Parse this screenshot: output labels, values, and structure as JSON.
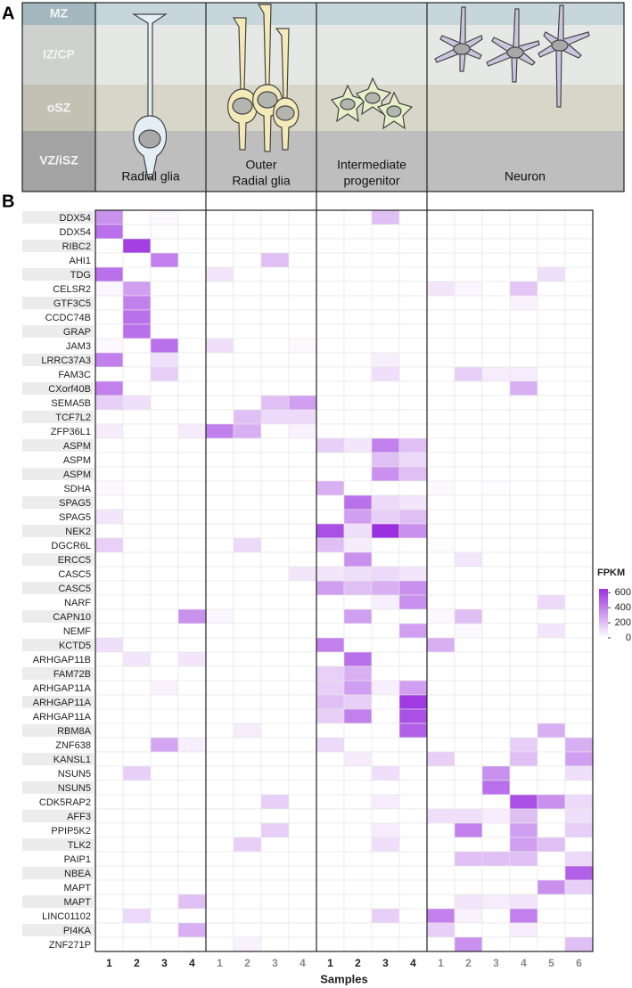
{
  "panel_a": {
    "label": "A",
    "zones": [
      "MZ",
      "IZ/CP",
      "oSZ",
      "VZ/iSZ"
    ],
    "cell_types": [
      [
        "Radial glia"
      ],
      [
        "Outer",
        "Radial glia"
      ],
      [
        "Intermediate",
        "progenitor"
      ],
      [
        "Neuron"
      ]
    ]
  },
  "chart_data": {
    "type": "heatmap",
    "label": "B",
    "x_label": "Samples",
    "colorbar_title": "FPKM",
    "zlim": [
      0,
      650
    ],
    "zticks": [
      0,
      200,
      400,
      600
    ],
    "low_color": "#ffffff",
    "high_color": "#9b30e0",
    "columns": [
      "1",
      "2",
      "3",
      "4",
      "1",
      "2",
      "3",
      "4",
      "1",
      "2",
      "3",
      "4",
      "1",
      "2",
      "3",
      "4",
      "5",
      "6"
    ],
    "rows": [
      "DDX54",
      "DDX54",
      "RIBC2",
      "AHI1",
      "TDG",
      "CELSR2",
      "GTF3C5",
      "CCDC74B",
      "GRAP",
      "JAM3",
      "LRRC37A3",
      "FAM3C",
      "CXorf40B",
      "SEMA5B",
      "TCF7L2",
      "ZFP36L1",
      "ASPM",
      "ASPM",
      "ASPM",
      "SDHA",
      "SPAG5",
      "SPAG5",
      "NEK2",
      "DGCR6L",
      "ERCC5",
      "CASC5",
      "CASC5",
      "NARF",
      "CAPN10",
      "NEMF",
      "KCTD5",
      "ARHGAP11B",
      "FAM72B",
      "ARHGAP11A",
      "ARHGAP11A",
      "ARHGAP11A",
      "RBM8A",
      "ZNF638",
      "KANSL1",
      "NSUN5",
      "NSUN5",
      "CDK5RAP2",
      "AFF3",
      "PPIP5K2",
      "TLK2",
      "PAIP1",
      "NBEA",
      "MAPT",
      "MAPT",
      "LINC01102",
      "PI4KA",
      "ZNF271P"
    ],
    "values": [
      [
        350,
        0,
        20,
        0,
        0,
        0,
        0,
        0,
        0,
        0,
        200,
        0,
        0,
        0,
        0,
        0,
        0,
        0
      ],
      [
        450,
        0,
        10,
        0,
        0,
        0,
        0,
        0,
        0,
        0,
        0,
        0,
        0,
        0,
        0,
        0,
        0,
        0
      ],
      [
        0,
        600,
        0,
        0,
        0,
        0,
        0,
        0,
        0,
        0,
        0,
        0,
        0,
        0,
        0,
        0,
        0,
        0
      ],
      [
        0,
        0,
        400,
        0,
        0,
        0,
        200,
        0,
        0,
        0,
        0,
        0,
        0,
        0,
        0,
        0,
        0,
        0
      ],
      [
        450,
        0,
        0,
        0,
        80,
        0,
        0,
        0,
        0,
        0,
        0,
        0,
        0,
        0,
        0,
        0,
        100,
        0
      ],
      [
        30,
        300,
        0,
        0,
        0,
        0,
        0,
        0,
        0,
        0,
        0,
        0,
        80,
        30,
        0,
        180,
        0,
        0
      ],
      [
        0,
        400,
        0,
        0,
        0,
        0,
        0,
        0,
        0,
        0,
        0,
        0,
        0,
        0,
        0,
        40,
        0,
        0
      ],
      [
        0,
        450,
        0,
        0,
        0,
        0,
        0,
        0,
        0,
        0,
        0,
        0,
        0,
        0,
        0,
        0,
        0,
        0
      ],
      [
        0,
        450,
        0,
        0,
        0,
        0,
        0,
        0,
        0,
        0,
        0,
        0,
        0,
        0,
        0,
        0,
        0,
        0
      ],
      [
        20,
        0,
        450,
        0,
        100,
        0,
        0,
        20,
        0,
        0,
        0,
        0,
        0,
        0,
        0,
        0,
        0,
        0
      ],
      [
        400,
        0,
        100,
        0,
        0,
        0,
        0,
        0,
        0,
        0,
        50,
        0,
        0,
        0,
        0,
        0,
        0,
        0
      ],
      [
        0,
        0,
        150,
        0,
        0,
        0,
        0,
        0,
        0,
        0,
        100,
        0,
        0,
        150,
        60,
        60,
        0,
        0
      ],
      [
        400,
        0,
        0,
        0,
        0,
        0,
        0,
        0,
        0,
        0,
        0,
        0,
        0,
        0,
        0,
        250,
        0,
        0
      ],
      [
        150,
        100,
        0,
        0,
        0,
        0,
        200,
        300,
        0,
        0,
        0,
        0,
        0,
        0,
        0,
        0,
        0,
        0
      ],
      [
        0,
        0,
        0,
        0,
        0,
        200,
        120,
        120,
        0,
        0,
        0,
        0,
        0,
        0,
        0,
        0,
        0,
        0
      ],
      [
        60,
        0,
        0,
        60,
        400,
        250,
        0,
        40,
        0,
        0,
        0,
        0,
        0,
        0,
        0,
        0,
        0,
        0
      ],
      [
        0,
        0,
        0,
        0,
        0,
        0,
        0,
        0,
        150,
        80,
        400,
        200,
        0,
        0,
        0,
        0,
        0,
        0
      ],
      [
        0,
        0,
        0,
        0,
        0,
        0,
        0,
        0,
        0,
        0,
        200,
        120,
        0,
        0,
        0,
        0,
        0,
        0
      ],
      [
        0,
        0,
        0,
        0,
        0,
        0,
        0,
        0,
        0,
        0,
        350,
        200,
        0,
        0,
        0,
        0,
        0,
        0
      ],
      [
        20,
        0,
        0,
        0,
        0,
        0,
        0,
        0,
        250,
        0,
        0,
        0,
        20,
        0,
        10,
        0,
        0,
        0
      ],
      [
        0,
        0,
        0,
        0,
        0,
        0,
        0,
        0,
        0,
        450,
        120,
        80,
        0,
        0,
        0,
        0,
        0,
        0
      ],
      [
        80,
        0,
        0,
        0,
        0,
        0,
        0,
        0,
        0,
        300,
        150,
        200,
        0,
        0,
        0,
        0,
        0,
        0
      ],
      [
        0,
        0,
        0,
        0,
        0,
        0,
        0,
        0,
        550,
        100,
        650,
        350,
        0,
        0,
        0,
        0,
        0,
        0
      ],
      [
        150,
        0,
        0,
        0,
        0,
        120,
        0,
        0,
        200,
        60,
        0,
        0,
        10,
        0,
        0,
        0,
        0,
        0
      ],
      [
        0,
        0,
        0,
        0,
        0,
        0,
        0,
        0,
        0,
        350,
        0,
        0,
        0,
        80,
        0,
        0,
        0,
        0
      ],
      [
        0,
        0,
        0,
        0,
        0,
        0,
        0,
        80,
        80,
        100,
        120,
        80,
        0,
        0,
        0,
        0,
        0,
        0
      ],
      [
        0,
        0,
        0,
        0,
        0,
        0,
        0,
        0,
        300,
        200,
        250,
        350,
        0,
        0,
        0,
        0,
        0,
        0
      ],
      [
        0,
        0,
        0,
        0,
        0,
        0,
        0,
        0,
        0,
        0,
        50,
        350,
        0,
        0,
        0,
        0,
        120,
        0
      ],
      [
        0,
        0,
        0,
        350,
        30,
        0,
        0,
        0,
        0,
        300,
        0,
        0,
        20,
        200,
        0,
        0,
        0,
        0
      ],
      [
        0,
        0,
        0,
        0,
        0,
        0,
        0,
        0,
        0,
        0,
        0,
        300,
        0,
        20,
        0,
        0,
        80,
        0
      ],
      [
        100,
        0,
        0,
        0,
        0,
        0,
        0,
        0,
        400,
        0,
        0,
        0,
        250,
        0,
        0,
        0,
        0,
        0
      ],
      [
        0,
        80,
        0,
        80,
        0,
        0,
        0,
        0,
        0,
        450,
        0,
        0,
        0,
        0,
        0,
        0,
        0,
        0
      ],
      [
        0,
        0,
        0,
        0,
        0,
        0,
        0,
        0,
        150,
        250,
        0,
        0,
        0,
        0,
        0,
        0,
        0,
        0
      ],
      [
        0,
        0,
        40,
        0,
        0,
        0,
        0,
        0,
        150,
        300,
        50,
        300,
        0,
        0,
        0,
        0,
        0,
        0
      ],
      [
        0,
        0,
        0,
        0,
        0,
        0,
        0,
        0,
        200,
        150,
        0,
        620,
        0,
        0,
        0,
        0,
        0,
        0
      ],
      [
        0,
        0,
        0,
        0,
        0,
        0,
        0,
        0,
        150,
        400,
        0,
        550,
        0,
        0,
        0,
        0,
        0,
        0
      ],
      [
        0,
        0,
        0,
        0,
        0,
        60,
        0,
        0,
        0,
        0,
        0,
        500,
        0,
        0,
        0,
        0,
        250,
        0
      ],
      [
        0,
        0,
        280,
        50,
        0,
        0,
        0,
        0,
        120,
        0,
        0,
        0,
        0,
        0,
        0,
        150,
        0,
        250
      ],
      [
        0,
        0,
        0,
        0,
        0,
        0,
        0,
        0,
        0,
        60,
        0,
        0,
        150,
        0,
        0,
        200,
        0,
        300
      ],
      [
        0,
        150,
        0,
        0,
        0,
        0,
        0,
        0,
        0,
        0,
        100,
        0,
        0,
        0,
        350,
        0,
        0,
        100
      ],
      [
        0,
        0,
        0,
        0,
        0,
        0,
        0,
        0,
        0,
        0,
        0,
        0,
        0,
        0,
        450,
        0,
        0,
        0
      ],
      [
        0,
        0,
        0,
        0,
        0,
        0,
        150,
        0,
        0,
        0,
        60,
        0,
        0,
        0,
        0,
        550,
        350,
        120
      ],
      [
        0,
        0,
        0,
        0,
        0,
        0,
        0,
        0,
        0,
        0,
        0,
        0,
        100,
        100,
        60,
        200,
        0,
        100
      ],
      [
        0,
        0,
        0,
        0,
        0,
        0,
        150,
        0,
        0,
        0,
        60,
        0,
        0,
        400,
        0,
        300,
        0,
        150
      ],
      [
        0,
        0,
        0,
        0,
        0,
        150,
        0,
        0,
        0,
        0,
        100,
        0,
        0,
        0,
        0,
        300,
        200,
        0
      ],
      [
        0,
        0,
        0,
        0,
        0,
        0,
        0,
        0,
        0,
        0,
        0,
        0,
        0,
        200,
        200,
        200,
        0,
        120
      ],
      [
        0,
        0,
        0,
        0,
        0,
        0,
        0,
        0,
        0,
        0,
        0,
        0,
        0,
        0,
        0,
        0,
        0,
        500
      ],
      [
        0,
        0,
        0,
        0,
        0,
        0,
        0,
        0,
        0,
        0,
        0,
        0,
        0,
        0,
        0,
        0,
        350,
        150
      ],
      [
        0,
        0,
        0,
        200,
        0,
        0,
        0,
        0,
        0,
        0,
        0,
        0,
        0,
        80,
        60,
        80,
        0,
        0
      ],
      [
        0,
        120,
        0,
        0,
        0,
        0,
        0,
        0,
        0,
        0,
        150,
        0,
        400,
        40,
        0,
        400,
        0,
        0
      ],
      [
        0,
        0,
        0,
        250,
        0,
        0,
        0,
        0,
        0,
        0,
        0,
        0,
        150,
        0,
        0,
        60,
        0,
        0
      ],
      [
        0,
        0,
        0,
        0,
        0,
        40,
        0,
        0,
        0,
        0,
        0,
        0,
        0,
        350,
        0,
        0,
        0,
        200
      ]
    ]
  }
}
